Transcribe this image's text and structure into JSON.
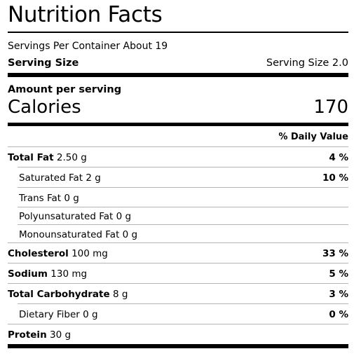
{
  "label": {
    "title": "Nutrition Facts",
    "servings_per_container": "Servings Per Container About 19",
    "serving_size_label": "Serving Size",
    "serving_size_value": "Serving Size 2.0",
    "amount_per_serving": "Amount per serving",
    "calories_label": "Calories",
    "calories_value": "170",
    "daily_value_header": "% Daily Value"
  },
  "nutrients": [
    {
      "name": "Total Fat",
      "amount": "2.50 g",
      "dv": "4 %"
    },
    {
      "name": "Saturated Fat",
      "amount": "2 g",
      "dv": "10 %"
    },
    {
      "name": "Trans Fat",
      "amount": "0 g",
      "dv": ""
    },
    {
      "name": "Polyunsaturated Fat",
      "amount": "0 g",
      "dv": ""
    },
    {
      "name": "Monounsaturated Fat",
      "amount": "0 g",
      "dv": ""
    },
    {
      "name": "Cholesterol",
      "amount": "100 mg",
      "dv": "33 %"
    },
    {
      "name": "Sodium",
      "amount": "130 mg",
      "dv": "5 %"
    },
    {
      "name": "Total Carbohydrate",
      "amount": "8 g",
      "dv": "3 %"
    },
    {
      "name": "Dietary Fiber",
      "amount": "0 g",
      "dv": "0 %"
    },
    {
      "name": "Protein",
      "amount": "30 g",
      "dv": ""
    }
  ]
}
